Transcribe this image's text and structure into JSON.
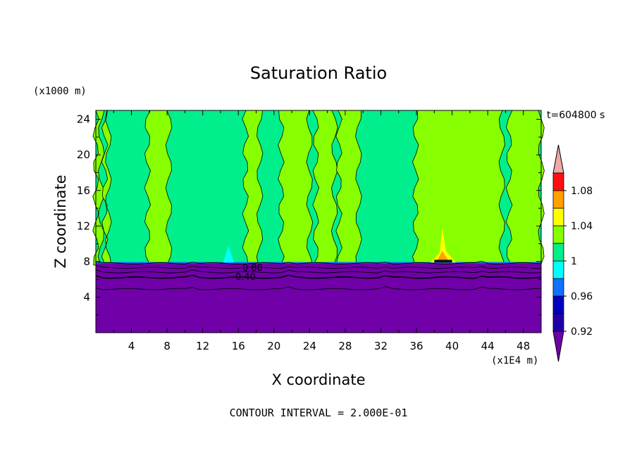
{
  "chart_data": {
    "type": "heatmap",
    "title": "Saturation Ratio",
    "xlabel": "X coordinate",
    "ylabel": "Z coordinate",
    "x_unit": "(x1E4 m)",
    "y_unit": "(x1000 m)",
    "time_label": "t=604800 s",
    "footer": "CONTOUR INTERVAL = 2.000E-01",
    "xlim": [
      0,
      50
    ],
    "ylim": [
      0,
      25
    ],
    "x_ticks": [
      "4",
      "8",
      "12",
      "16",
      "20",
      "24",
      "28",
      "32",
      "36",
      "40",
      "44",
      "48"
    ],
    "y_ticks": [
      "4",
      "8",
      "12",
      "16",
      "20",
      "24"
    ],
    "colorbar_levels": [
      0.92,
      0.94,
      0.96,
      0.98,
      1.0,
      1.02,
      1.04,
      1.06,
      1.08,
      1.1
    ],
    "colorbar_labels": [
      "0.92",
      "0.96",
      "1",
      "1.04",
      "1.08"
    ],
    "colorbar_colors": {
      "under": "#7000a8",
      "c092": "#2200a8",
      "c094": "#0000c0",
      "c096": "#1070ff",
      "c098": "#00ffff",
      "c100": "#00ef8c",
      "c102": "#88ff00",
      "c104": "#ffff00",
      "c106": "#ffa000",
      "c108": "#ff5000",
      "c110": "#ff1010",
      "over": "#f0a8a8"
    },
    "contour_labels": [
      "0.80",
      "0.40"
    ],
    "regions": {
      "background_above_8km": 1.0,
      "green_bands_x": [
        [
          0,
          0.6
        ],
        [
          1.0,
          1.4
        ],
        [
          5.8,
          8.2
        ],
        [
          16.8,
          18.4
        ],
        [
          20.8,
          24.0
        ],
        [
          24.7,
          26.8
        ],
        [
          27.3,
          29.5
        ],
        [
          35.9,
          45.6
        ],
        [
          46.4,
          50.0
        ]
      ],
      "layer_below_7.8km": 0.8,
      "warm_spot_x": 39,
      "warm_spot_top_z": 11.8,
      "cold_spot_x": 14.9
    }
  }
}
